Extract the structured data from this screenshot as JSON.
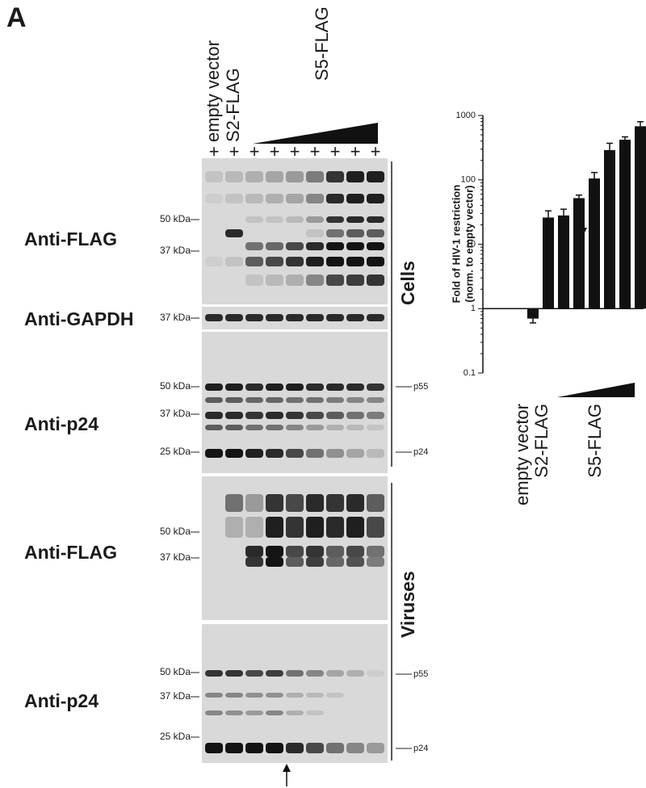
{
  "panel_label": "A",
  "blots": {
    "lane_marks": [
      "+",
      "+",
      "+",
      "+",
      "+",
      "+",
      "+",
      "+",
      "+"
    ],
    "lane_labels": [
      "empty vector",
      "S2-FLAG",
      "S5-FLAG"
    ],
    "panels": [
      {
        "label": "Anti-FLAG",
        "markers": [
          "50 kDa",
          "37 kDa"
        ]
      },
      {
        "label": "Anti-GAPDH",
        "markers": [
          "37 kDa"
        ]
      },
      {
        "label": "Anti-p24",
        "markers": [
          "50 kDa",
          "37 kDa",
          "25 kDa"
        ],
        "bands": [
          "p55",
          "p24"
        ]
      },
      {
        "label": "Anti-FLAG",
        "markers": [
          "50 kDa",
          "37 kDa"
        ]
      },
      {
        "label": "Anti-p24",
        "markers": [
          "50 kDa",
          "37 kDa",
          "25 kDa"
        ],
        "bands": [
          "p55",
          "p24"
        ]
      }
    ],
    "groups": [
      "Cells",
      "Viruses"
    ]
  },
  "chart_data": {
    "type": "bar",
    "y_label": [
      "Fold of HIV-1 restriction",
      "(norm. to empty vector)"
    ],
    "categories": [
      "empty vector",
      "S2-FLAG",
      null,
      null,
      null,
      null,
      null,
      null
    ],
    "group_label": "S5-FLAG",
    "values": [
      0.7,
      26,
      28,
      52,
      105,
      290,
      420,
      680
    ],
    "errors": [
      0.1,
      7,
      7,
      6,
      25,
      80,
      45,
      120
    ],
    "color": "#111111",
    "y_scale": "log",
    "baseline": 1,
    "ylim": [
      0.1,
      1000
    ],
    "yticks": [
      0.1,
      1,
      10,
      100,
      1000
    ]
  }
}
